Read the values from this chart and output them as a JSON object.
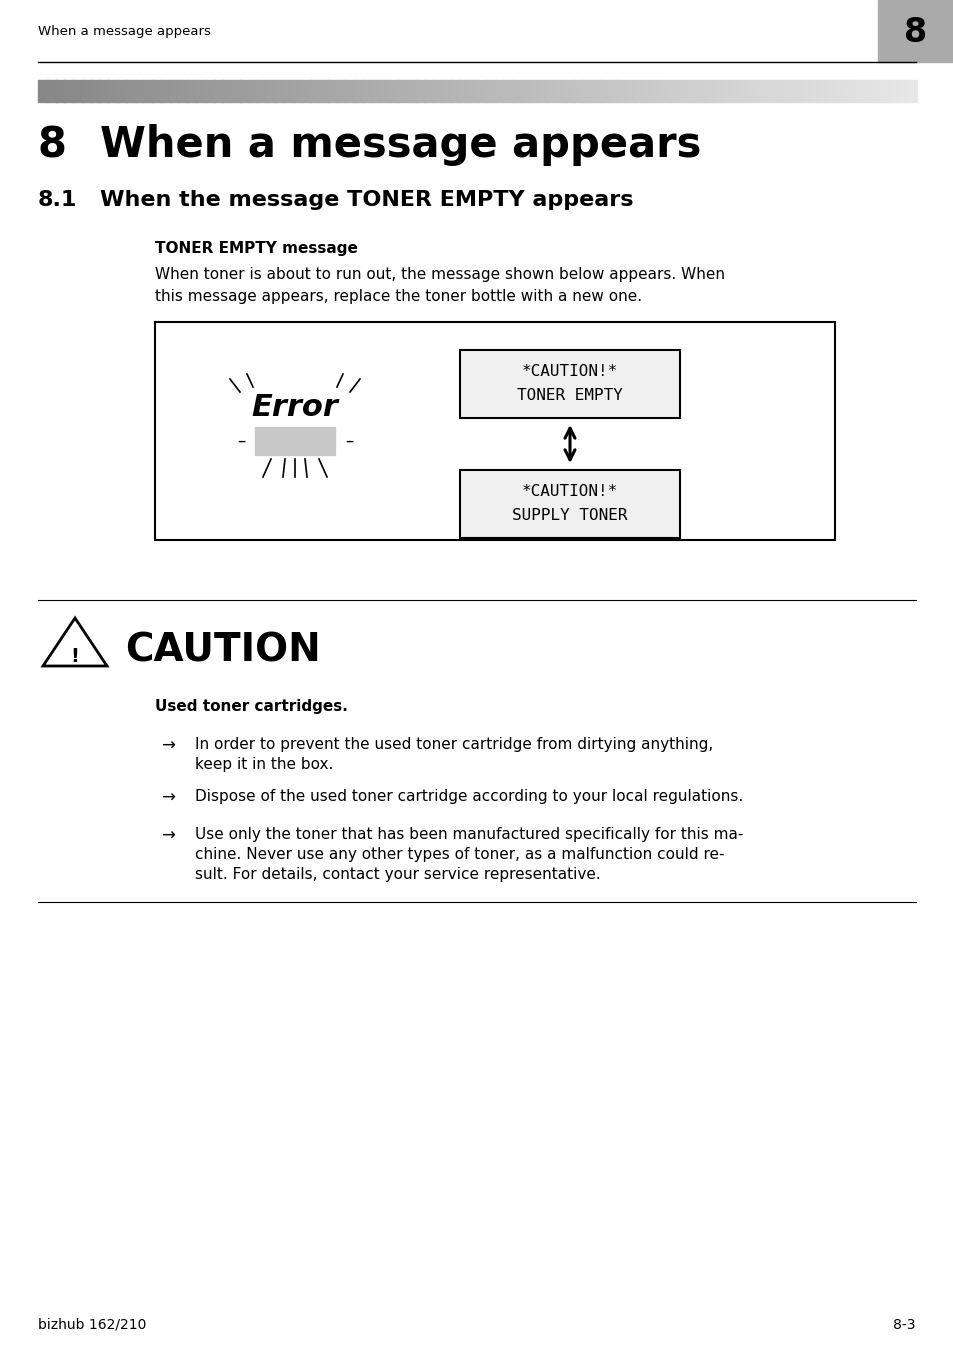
{
  "page_title": "When a message appears",
  "chapter_num": "8",
  "title_chapter": "8",
  "title_text": "When a message appears",
  "section_num": "8.1",
  "section_title": "When the message TONER EMPTY appears",
  "subsection_title": "TONER EMPTY message",
  "body_text1": "When toner is about to run out, the message shown below appears. When",
  "body_text2": "this message appears, replace the toner bottle with a new one.",
  "box1_line1": "*CAUTION!*",
  "box1_line2": "TONER EMPTY",
  "box2_line1": "*CAUTION!*",
  "box2_line2": "SUPPLY TONER",
  "caution_title": "CAUTION",
  "caution_subtitle": "Used toner cartridges.",
  "caution_b1_l1": "In order to prevent the used toner cartridge from dirtying anything,",
  "caution_b1_l2": "keep it in the box.",
  "caution_b2": "Dispose of the used toner cartridge according to your local regulations.",
  "caution_b3_l1": "Use only the toner that has been manufactured specifically for this ma-",
  "caution_b3_l2": "chine. Never use any other types of toner, as a malfunction could re-",
  "caution_b3_l3": "sult. For details, contact your service representative.",
  "footer_left": "bizhub 162/210",
  "footer_right": "8-3",
  "bg_color": "#ffffff",
  "text_color": "#000000",
  "gray_header_bg": "#aaaaaa",
  "light_gray": "#c8c8c8"
}
